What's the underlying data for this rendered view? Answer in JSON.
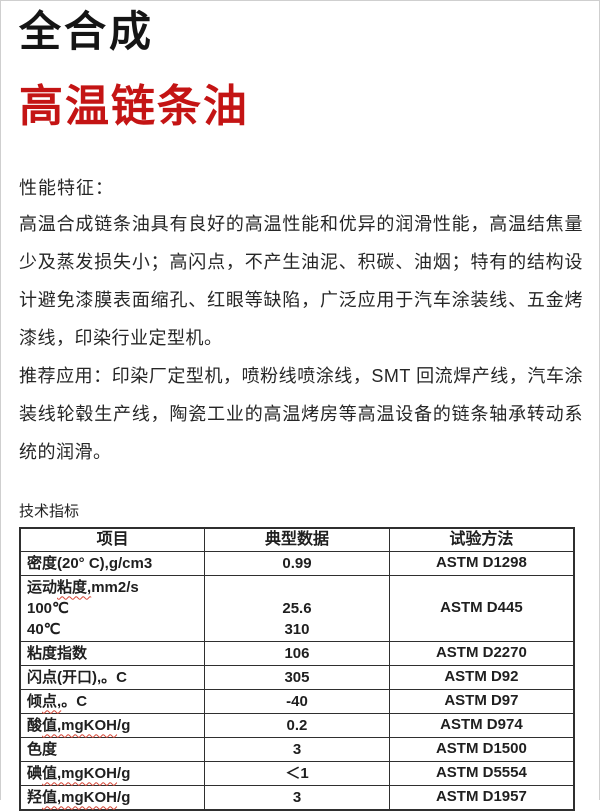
{
  "header": {
    "title_black": "全合成",
    "title_red": "高温链条油",
    "accent_red": "#c41414"
  },
  "sections": {
    "features_heading": "性能特征：",
    "features_paragraph": "高温合成链条油具有良好的高温性能和优异的润滑性能，高温结焦量少及蒸发损失小；高闪点，不产生油泥、积碳、油烟；特有的结构设计避免漆膜表面缩孔、红眼等缺陷，广泛应用于汽车涂装线、五金烤漆线，印染行业定型机。",
    "applications_paragraph": "推荐应用：印染厂定型机，喷粉线喷涂线，SMT 回流焊产线，汽车涂装线轮毂生产线，陶瓷工业的高温烤房等高温设备的链条轴承转动系统的润滑。",
    "table_caption": "技术指标"
  },
  "table": {
    "columns": [
      "项目",
      "典型数据",
      "试验方法"
    ],
    "rows": [
      {
        "item_lines": [
          [
            {
              "text": "密度(20° C),g/cm3",
              "squiggle": false
            }
          ]
        ],
        "value_lines": [
          "0.99"
        ],
        "method": "ASTM D1298"
      },
      {
        "item_lines": [
          [
            {
              "text": "运动",
              "squiggle": false
            },
            {
              "text": "粘度,",
              "squiggle": true
            },
            {
              "text": "mm2/s",
              "squiggle": false
            }
          ],
          [
            {
              "text": "100℃",
              "squiggle": false
            }
          ],
          [
            {
              "text": "40℃",
              "squiggle": false
            }
          ]
        ],
        "value_lines": [
          "",
          "25.6",
          "310"
        ],
        "method": "ASTM D445"
      },
      {
        "item_lines": [
          [
            {
              "text": "粘度指数",
              "squiggle": false
            }
          ]
        ],
        "value_lines": [
          "106"
        ],
        "method": "ASTM D2270"
      },
      {
        "item_lines": [
          [
            {
              "text": "闪点(开口),。C",
              "squiggle": false
            }
          ]
        ],
        "value_lines": [
          "305"
        ],
        "method": "ASTM D92"
      },
      {
        "item_lines": [
          [
            {
              "text": "倾",
              "squiggle": false
            },
            {
              "text": "点,",
              "squiggle": true
            },
            {
              "text": "。C",
              "squiggle": false
            }
          ]
        ],
        "value_lines": [
          "-40"
        ],
        "method": "ASTM D97"
      },
      {
        "item_lines": [
          [
            {
              "text": "酸",
              "squiggle": false
            },
            {
              "text": "值,mgKOH",
              "squiggle": true
            },
            {
              "text": "/g",
              "squiggle": false
            }
          ]
        ],
        "value_lines": [
          "0.2"
        ],
        "method": "ASTM D974"
      },
      {
        "item_lines": [
          [
            {
              "text": "色度",
              "squiggle": false
            }
          ]
        ],
        "value_lines": [
          "3"
        ],
        "method": "ASTM D1500"
      },
      {
        "item_lines": [
          [
            {
              "text": "碘",
              "squiggle": false
            },
            {
              "text": "值,mgKOH",
              "squiggle": true
            },
            {
              "text": "/g",
              "squiggle": false
            }
          ]
        ],
        "value_lines": [
          "＜1"
        ],
        "method": "ASTM D5554"
      },
      {
        "item_lines": [
          [
            {
              "text": "羟",
              "squiggle": false
            },
            {
              "text": "值,mgKOH",
              "squiggle": true
            },
            {
              "text": "/g",
              "squiggle": false
            }
          ]
        ],
        "value_lines": [
          "3"
        ],
        "method": "ASTM D1957"
      }
    ]
  }
}
